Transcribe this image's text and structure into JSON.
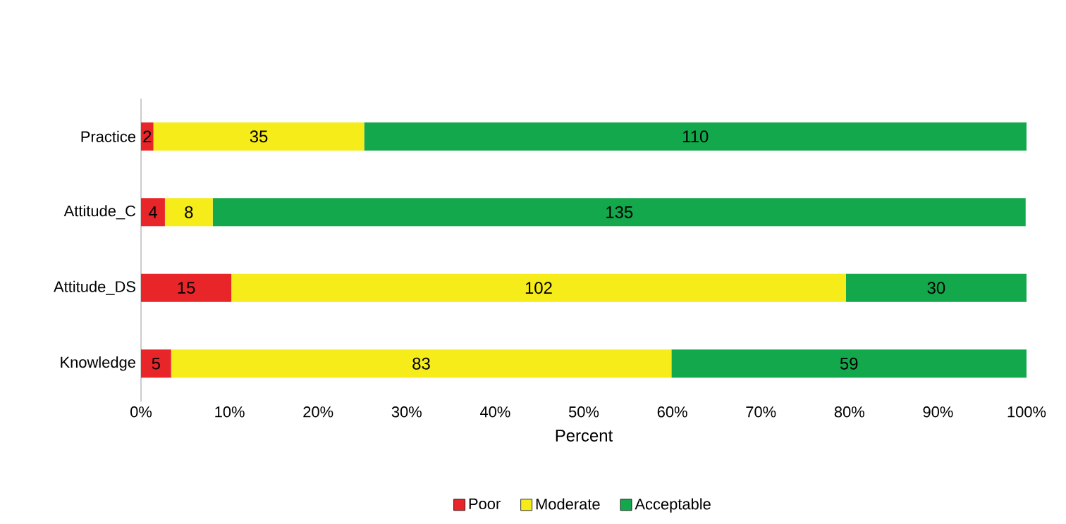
{
  "chart_data": {
    "type": "bar",
    "orientation": "horizontal",
    "stacked": true,
    "xlabel": "Percent",
    "categories": [
      "Practice",
      "Attitude_C",
      "Attitude_DS",
      "Knowledge"
    ],
    "series": [
      {
        "name": "Poor",
        "color": "#e8262a",
        "values": [
          1.4,
          2.7,
          10.2,
          3.4
        ]
      },
      {
        "name": "Moderate",
        "color": "#f5ec1a",
        "values": [
          23.8,
          5.4,
          69.4,
          56.5
        ]
      },
      {
        "name": "Acceptable",
        "color": "#13a84c",
        "values": [
          74.8,
          91.8,
          20.4,
          40.1
        ]
      }
    ],
    "annotations": [
      "2",
      "35",
      "110",
      "4",
      "8",
      "135",
      "15",
      "102",
      "30",
      "5",
      "83",
      "59"
    ],
    "xlim": [
      0,
      100
    ],
    "xticks": [
      {
        "value": 0,
        "label": "0%"
      },
      {
        "value": 10,
        "label": "10%"
      },
      {
        "value": 20,
        "label": "20%"
      },
      {
        "value": 30,
        "label": "30%"
      },
      {
        "value": 40,
        "label": "40%"
      },
      {
        "value": 50,
        "label": "50%"
      },
      {
        "value": 60,
        "label": "60%"
      },
      {
        "value": 70,
        "label": "70%"
      },
      {
        "value": 80,
        "label": "80%"
      },
      {
        "value": 90,
        "label": "90%"
      },
      {
        "value": 100,
        "label": "100%"
      }
    ],
    "legend": "bottom"
  }
}
